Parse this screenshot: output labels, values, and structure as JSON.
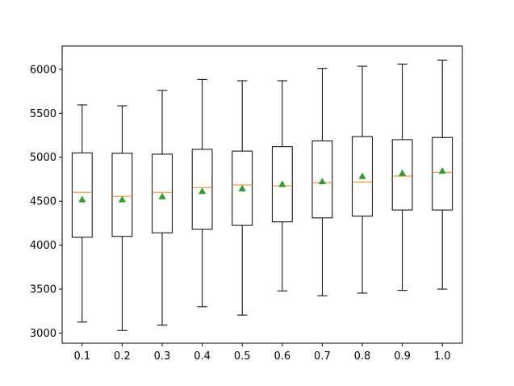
{
  "chart_data": {
    "type": "box",
    "title": "",
    "xlabel": "",
    "ylabel": "",
    "categories": [
      "0.1",
      "0.2",
      "0.3",
      "0.4",
      "0.5",
      "0.6",
      "0.7",
      "0.8",
      "0.9",
      "1.0"
    ],
    "boxes": [
      {
        "label": "0.1",
        "whisker_low": 3125,
        "q1": 4090,
        "median": 4600,
        "q3": 5050,
        "whisker_high": 5595,
        "mean": 4520
      },
      {
        "label": "0.2",
        "whisker_low": 3030,
        "q1": 4100,
        "median": 4555,
        "q3": 5045,
        "whisker_high": 5585,
        "mean": 4520
      },
      {
        "label": "0.3",
        "whisker_low": 3090,
        "q1": 4140,
        "median": 4600,
        "q3": 5035,
        "whisker_high": 5760,
        "mean": 4555
      },
      {
        "label": "0.4",
        "whisker_low": 3300,
        "q1": 4180,
        "median": 4655,
        "q3": 5090,
        "whisker_high": 5885,
        "mean": 4615
      },
      {
        "label": "0.5",
        "whisker_low": 3205,
        "q1": 4225,
        "median": 4685,
        "q3": 5070,
        "whisker_high": 5870,
        "mean": 4645
      },
      {
        "label": "0.6",
        "whisker_low": 3480,
        "q1": 4265,
        "median": 4675,
        "q3": 5120,
        "whisker_high": 5870,
        "mean": 4695
      },
      {
        "label": "0.7",
        "whisker_low": 3425,
        "q1": 4310,
        "median": 4710,
        "q3": 5185,
        "whisker_high": 6010,
        "mean": 4725
      },
      {
        "label": "0.8",
        "whisker_low": 3455,
        "q1": 4330,
        "median": 4720,
        "q3": 5235,
        "whisker_high": 6035,
        "mean": 4785
      },
      {
        "label": "0.9",
        "whisker_low": 3485,
        "q1": 4400,
        "median": 4785,
        "q3": 5200,
        "whisker_high": 6060,
        "mean": 4820
      },
      {
        "label": "1.0",
        "whisker_low": 3500,
        "q1": 4400,
        "median": 4830,
        "q3": 5225,
        "whisker_high": 6105,
        "mean": 4845
      }
    ],
    "yticks": [
      3000,
      3500,
      4000,
      4500,
      5000,
      5500,
      6000
    ],
    "ylim": [
      2885,
      6265
    ],
    "grid": false,
    "legend": "none",
    "colors": {
      "box": "#000000",
      "median": "#ff7f0e",
      "mean_marker": "#2ca02c",
      "frame": "#000000",
      "background": "#ffffff"
    }
  }
}
